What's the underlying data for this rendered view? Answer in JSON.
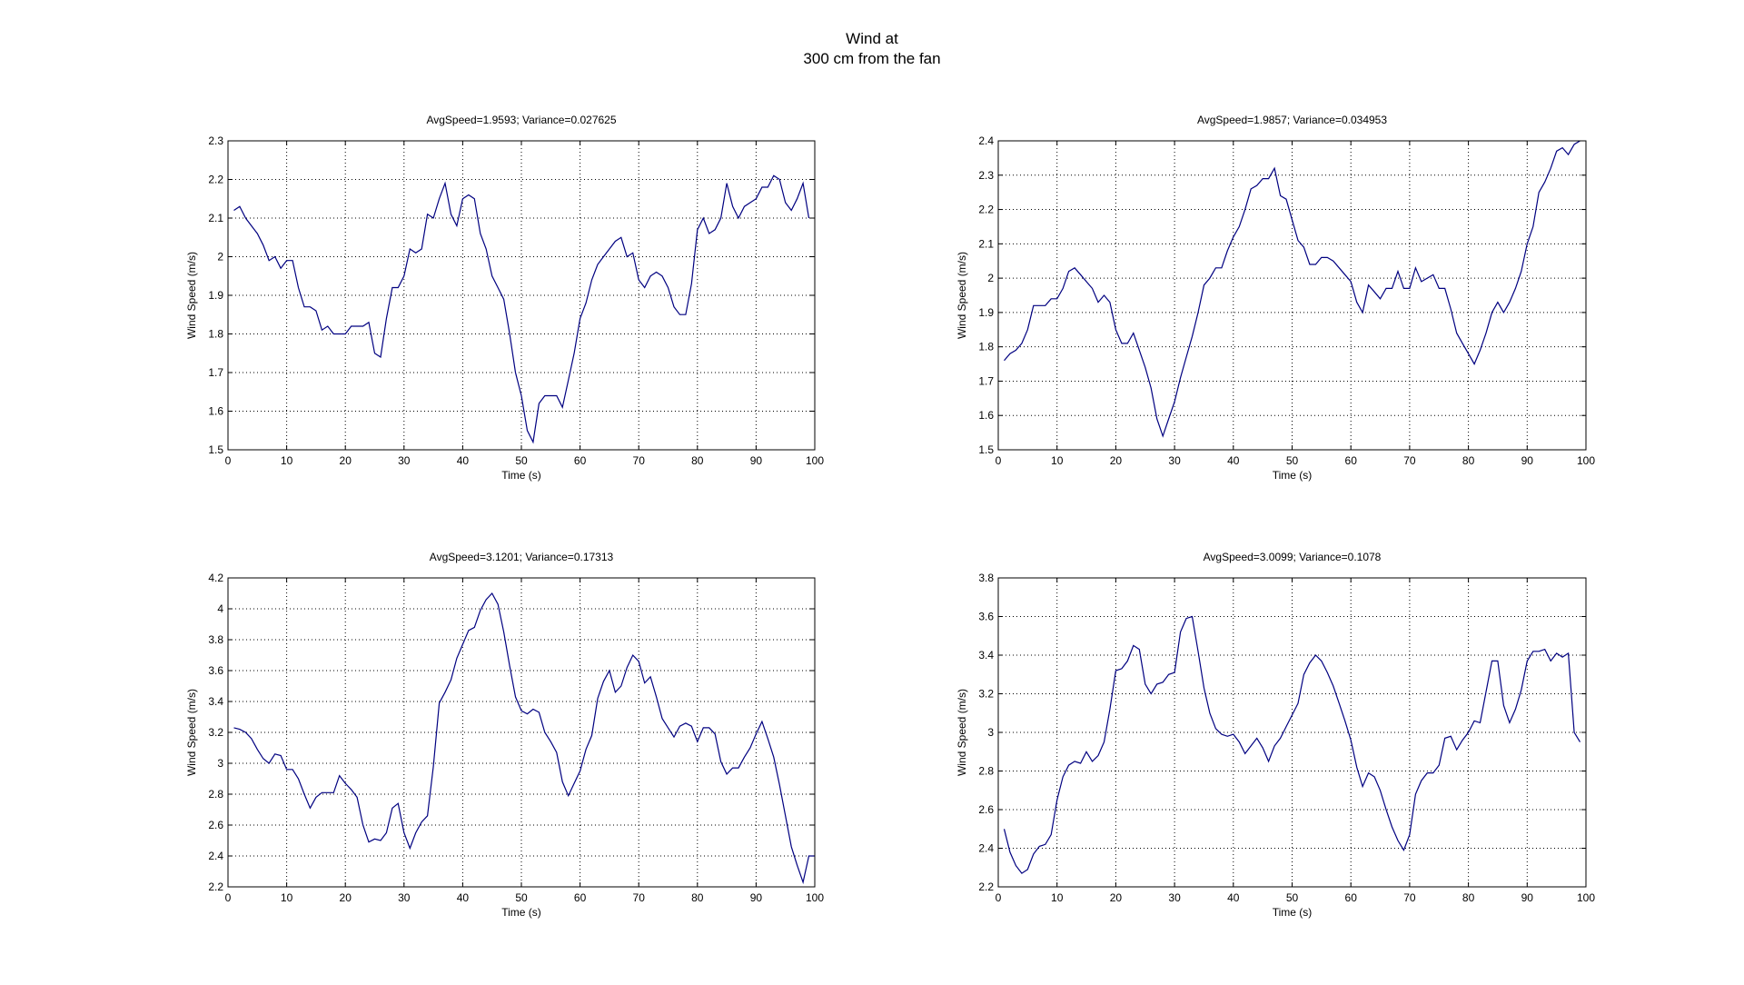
{
  "figure": {
    "title_line1": "Wind at",
    "title_line2": "300 cm from the fan"
  },
  "chart_data": [
    {
      "type": "line",
      "title": "AvgSpeed=1.9593; Variance=0.027625",
      "xlabel": "Time (s)",
      "ylabel": "Wind Speed (m/s)",
      "xlim": [
        0,
        100
      ],
      "ylim": [
        1.5,
        2.3
      ],
      "xticks": [
        "0",
        "10",
        "20",
        "30",
        "40",
        "50",
        "60",
        "70",
        "80",
        "90",
        "100"
      ],
      "yticks": [
        "1.5",
        "1.6",
        "1.7",
        "1.8",
        "1.9",
        "2",
        "2.1",
        "2.2",
        "2.3"
      ],
      "grid": true,
      "color": "#000080",
      "x_start": 1,
      "y": [
        2.12,
        2.13,
        2.1,
        2.08,
        2.06,
        2.03,
        1.99,
        2.0,
        1.97,
        1.99,
        1.99,
        1.92,
        1.87,
        1.87,
        1.86,
        1.81,
        1.82,
        1.8,
        1.8,
        1.8,
        1.82,
        1.82,
        1.82,
        1.83,
        1.75,
        1.74,
        1.84,
        1.92,
        1.92,
        1.95,
        2.02,
        2.01,
        2.02,
        2.11,
        2.1,
        2.15,
        2.19,
        2.11,
        2.08,
        2.15,
        2.16,
        2.15,
        2.06,
        2.02,
        1.95,
        1.92,
        1.89,
        1.8,
        1.7,
        1.64,
        1.55,
        1.52,
        1.62,
        1.64,
        1.64,
        1.64,
        1.61,
        1.68,
        1.75,
        1.84,
        1.88,
        1.94,
        1.98,
        2.0,
        2.02,
        2.04,
        2.05,
        2.0,
        2.01,
        1.94,
        1.92,
        1.95,
        1.96,
        1.95,
        1.92,
        1.87,
        1.85,
        1.85,
        1.93,
        2.07,
        2.1,
        2.06,
        2.07,
        2.1,
        2.19,
        2.13,
        2.1,
        2.13,
        2.14,
        2.15,
        2.18,
        2.18,
        2.21,
        2.2,
        2.14,
        2.12,
        2.15,
        2.19,
        2.1
      ]
    },
    {
      "type": "line",
      "title": "AvgSpeed=1.9857; Variance=0.034953",
      "xlabel": "Time (s)",
      "ylabel": "Wind Speed (m/s)",
      "xlim": [
        0,
        100
      ],
      "ylim": [
        1.5,
        2.4
      ],
      "xticks": [
        "0",
        "10",
        "20",
        "30",
        "40",
        "50",
        "60",
        "70",
        "80",
        "90",
        "100"
      ],
      "yticks": [
        "1.5",
        "1.6",
        "1.7",
        "1.8",
        "1.9",
        "2",
        "2.1",
        "2.2",
        "2.3",
        "2.4"
      ],
      "grid": true,
      "color": "#000080",
      "x_start": 1,
      "y": [
        1.76,
        1.78,
        1.79,
        1.81,
        1.85,
        1.92,
        1.92,
        1.92,
        1.94,
        1.94,
        1.97,
        2.02,
        2.03,
        2.01,
        1.99,
        1.97,
        1.93,
        1.95,
        1.93,
        1.85,
        1.81,
        1.81,
        1.84,
        1.79,
        1.74,
        1.68,
        1.59,
        1.54,
        1.59,
        1.64,
        1.71,
        1.77,
        1.83,
        1.9,
        1.98,
        2.0,
        2.03,
        2.03,
        2.08,
        2.12,
        2.15,
        2.2,
        2.26,
        2.27,
        2.29,
        2.29,
        2.32,
        2.24,
        2.23,
        2.17,
        2.11,
        2.09,
        2.04,
        2.04,
        2.06,
        2.06,
        2.05,
        2.03,
        2.01,
        1.99,
        1.93,
        1.9,
        1.98,
        1.96,
        1.94,
        1.97,
        1.97,
        2.02,
        1.97,
        1.97,
        2.03,
        1.99,
        2.0,
        2.01,
        1.97,
        1.97,
        1.91,
        1.84,
        1.81,
        1.78,
        1.75,
        1.79,
        1.84,
        1.9,
        1.93,
        1.9,
        1.93,
        1.97,
        2.02,
        2.1,
        2.15,
        2.25,
        2.28,
        2.32,
        2.37,
        2.38,
        2.36,
        2.39,
        2.4
      ]
    },
    {
      "type": "line",
      "title": "AvgSpeed=3.1201; Variance=0.17313",
      "xlabel": "Time (s)",
      "ylabel": "Wind Speed (m/s)",
      "xlim": [
        0,
        100
      ],
      "ylim": [
        2.2,
        4.2
      ],
      "xticks": [
        "0",
        "10",
        "20",
        "30",
        "40",
        "50",
        "60",
        "70",
        "80",
        "90",
        "100"
      ],
      "yticks": [
        "2.2",
        "2.4",
        "2.6",
        "2.8",
        "3",
        "3.2",
        "3.4",
        "3.6",
        "3.8",
        "4",
        "4.2"
      ],
      "grid": true,
      "color": "#000080",
      "x_start": 1,
      "y": [
        3.23,
        3.22,
        3.2,
        3.16,
        3.09,
        3.03,
        3.0,
        3.06,
        3.05,
        2.96,
        2.96,
        2.9,
        2.8,
        2.71,
        2.78,
        2.81,
        2.81,
        2.81,
        2.92,
        2.87,
        2.83,
        2.78,
        2.6,
        2.49,
        2.51,
        2.5,
        2.55,
        2.71,
        2.74,
        2.55,
        2.45,
        2.55,
        2.62,
        2.66,
        2.98,
        3.39,
        3.46,
        3.54,
        3.68,
        3.77,
        3.86,
        3.88,
        3.99,
        4.06,
        4.1,
        4.03,
        3.85,
        3.63,
        3.43,
        3.34,
        3.32,
        3.35,
        3.33,
        3.2,
        3.14,
        3.07,
        2.88,
        2.79,
        2.87,
        2.95,
        3.09,
        3.18,
        3.42,
        3.53,
        3.6,
        3.46,
        3.5,
        3.62,
        3.7,
        3.66,
        3.52,
        3.56,
        3.43,
        3.29,
        3.23,
        3.17,
        3.24,
        3.26,
        3.24,
        3.14,
        3.23,
        3.23,
        3.19,
        3.01,
        2.93,
        2.97,
        2.97,
        3.04,
        3.1,
        3.19,
        3.27,
        3.16,
        3.04,
        2.86,
        2.66,
        2.46,
        2.34,
        2.23,
        2.4,
        2.4
      ]
    },
    {
      "type": "line",
      "title": "AvgSpeed=3.0099; Variance=0.1078",
      "xlabel": "Time (s)",
      "ylabel": "Wind Speed (m/s)",
      "xlim": [
        0,
        100
      ],
      "ylim": [
        2.2,
        3.8
      ],
      "xticks": [
        "0",
        "10",
        "20",
        "30",
        "40",
        "50",
        "60",
        "70",
        "80",
        "90",
        "100"
      ],
      "yticks": [
        "2.2",
        "2.4",
        "2.6",
        "2.8",
        "3",
        "3.2",
        "3.4",
        "3.6",
        "3.8"
      ],
      "grid": true,
      "color": "#000080",
      "x_start": 1,
      "y": [
        2.5,
        2.38,
        2.31,
        2.27,
        2.29,
        2.37,
        2.41,
        2.42,
        2.47,
        2.65,
        2.77,
        2.83,
        2.85,
        2.84,
        2.9,
        2.85,
        2.88,
        2.95,
        3.12,
        3.32,
        3.33,
        3.37,
        3.45,
        3.43,
        3.25,
        3.2,
        3.25,
        3.26,
        3.3,
        3.31,
        3.52,
        3.59,
        3.6,
        3.42,
        3.23,
        3.1,
        3.02,
        2.99,
        2.98,
        2.99,
        2.95,
        2.89,
        2.93,
        2.97,
        2.92,
        2.85,
        2.93,
        2.97,
        3.03,
        3.09,
        3.15,
        3.3,
        3.36,
        3.4,
        3.37,
        3.31,
        3.24,
        3.15,
        3.06,
        2.96,
        2.82,
        2.72,
        2.79,
        2.77,
        2.7,
        2.6,
        2.51,
        2.44,
        2.39,
        2.47,
        2.68,
        2.75,
        2.79,
        2.79,
        2.83,
        2.97,
        2.98,
        2.91,
        2.96,
        3.0,
        3.06,
        3.05,
        3.21,
        3.37,
        3.37,
        3.14,
        3.05,
        3.12,
        3.22,
        3.37,
        3.42,
        3.42,
        3.43,
        3.37,
        3.41,
        3.39,
        3.41,
        3.0,
        2.95
      ]
    }
  ]
}
